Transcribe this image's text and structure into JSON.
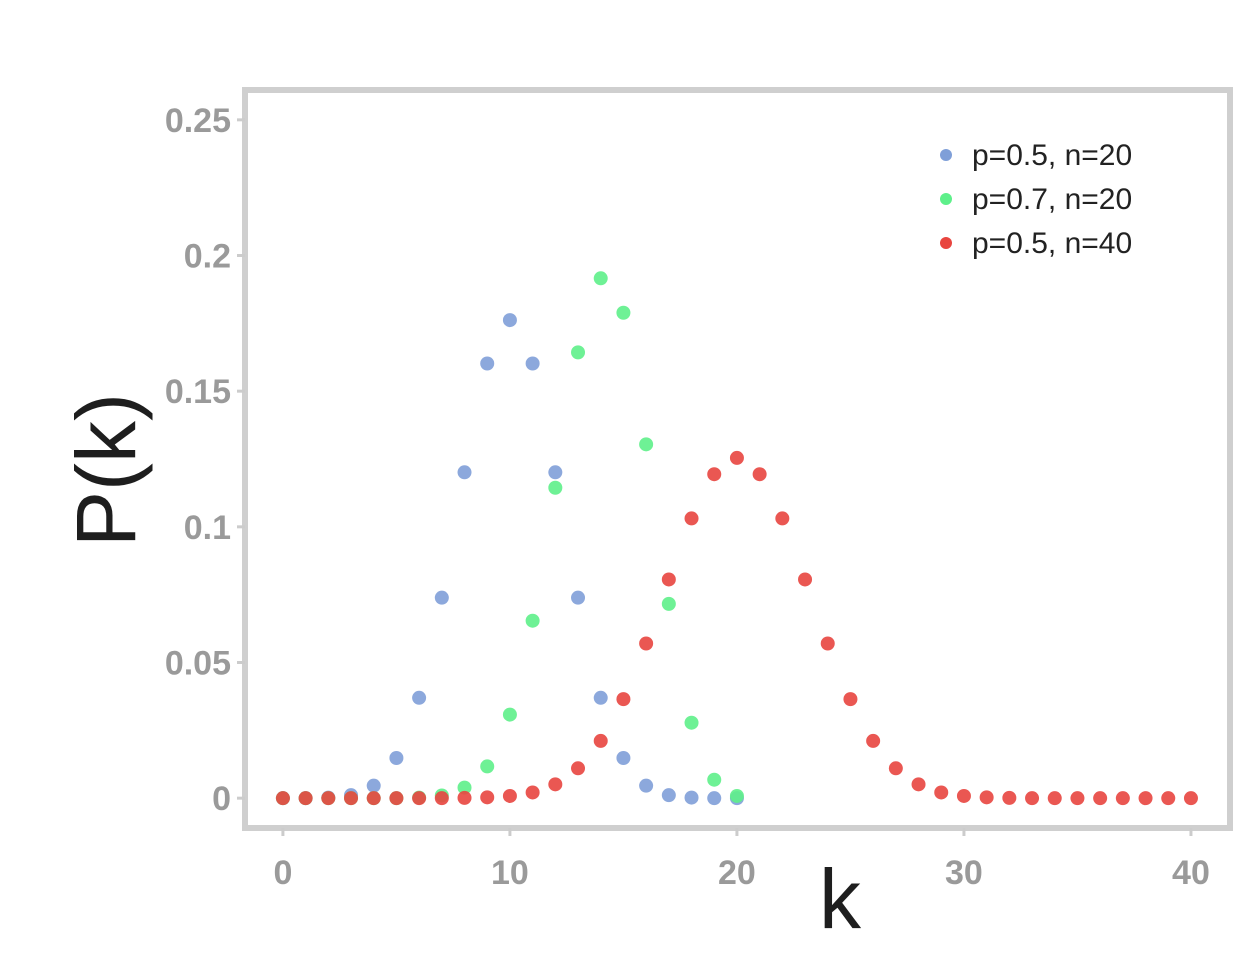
{
  "chart_data": {
    "type": "scatter",
    "xlabel": "k",
    "ylabel": "P(k)",
    "xlim": [
      -1.67,
      41.72
    ],
    "ylim": [
      -0.011,
      0.261
    ],
    "xticks": [
      0,
      10,
      20,
      30,
      40
    ],
    "yticks": [
      0,
      0.05,
      0.1,
      0.15,
      0.2,
      0.25
    ],
    "legend": "upper right",
    "series": [
      {
        "name": "p=0.5, n=20",
        "color": "#7f9fd8",
        "x": [
          0,
          1,
          2,
          3,
          4,
          5,
          6,
          7,
          8,
          9,
          10,
          11,
          12,
          13,
          14,
          15,
          16,
          17,
          18,
          19,
          20
        ],
        "values": [
          0,
          0,
          0.0002,
          0.0011,
          0.0046,
          0.0148,
          0.037,
          0.0739,
          0.1201,
          0.1602,
          0.1762,
          0.1602,
          0.1201,
          0.0739,
          0.037,
          0.0148,
          0.0046,
          0.0011,
          0.0002,
          0,
          0
        ]
      },
      {
        "name": "p=0.7, n=20",
        "color": "#5ef08a",
        "x": [
          0,
          1,
          2,
          3,
          4,
          5,
          6,
          7,
          8,
          9,
          10,
          11,
          12,
          13,
          14,
          15,
          16,
          17,
          18,
          19,
          20
        ],
        "values": [
          0,
          0,
          0,
          0,
          0,
          0,
          0.0002,
          0.001,
          0.0039,
          0.0117,
          0.0308,
          0.0654,
          0.1144,
          0.1643,
          0.1916,
          0.1789,
          0.1304,
          0.0716,
          0.0278,
          0.0068,
          0.0008
        ]
      },
      {
        "name": "p=0.5, n=40",
        "color": "#e8453f",
        "x": [
          0,
          1,
          2,
          3,
          4,
          5,
          6,
          7,
          8,
          9,
          10,
          11,
          12,
          13,
          14,
          15,
          16,
          17,
          18,
          19,
          20,
          21,
          22,
          23,
          24,
          25,
          26,
          27,
          28,
          29,
          30,
          31,
          32,
          33,
          34,
          35,
          36,
          37,
          38,
          39,
          40
        ],
        "values": [
          0,
          0,
          0,
          0,
          0,
          0,
          0,
          0,
          0.0001,
          0.0003,
          0.0008,
          0.0021,
          0.0051,
          0.011,
          0.0211,
          0.0365,
          0.057,
          0.0806,
          0.1031,
          0.1194,
          0.1254,
          0.1194,
          0.1031,
          0.0806,
          0.057,
          0.0365,
          0.0211,
          0.011,
          0.0051,
          0.0021,
          0.0008,
          0.0003,
          0.0001,
          0,
          0,
          0,
          0,
          0,
          0,
          0,
          0
        ]
      }
    ]
  }
}
